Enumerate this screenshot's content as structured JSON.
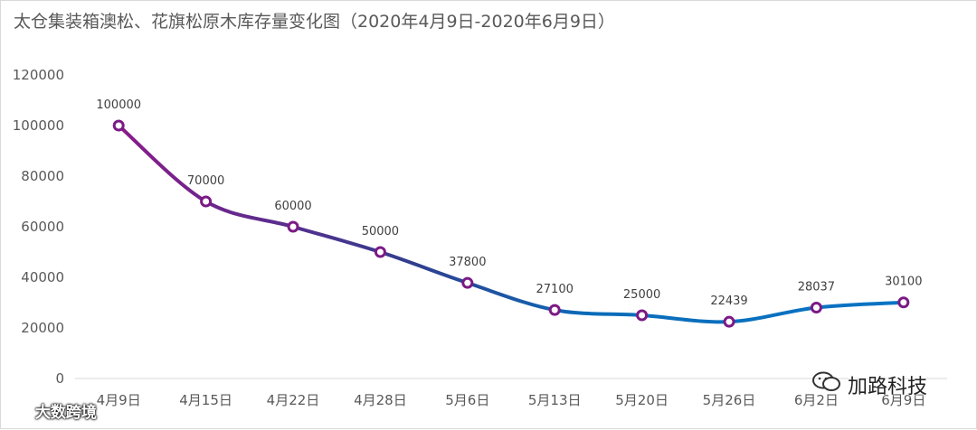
{
  "chart_data": {
    "type": "line",
    "title": "太仓集装箱澳松、花旗松原木库存量变化图（2020年4月9日-2020年6月9日）",
    "categories": [
      "4月9日",
      "4月15日",
      "4月22日",
      "4月28日",
      "5月6日",
      "5月13日",
      "5月20日",
      "5月26日",
      "6月2日",
      "6月9日"
    ],
    "series": [
      {
        "name": "库存量",
        "values": [
          100000,
          70000,
          60000,
          50000,
          37800,
          27100,
          25000,
          22439,
          28037,
          30100
        ]
      }
    ],
    "y_ticks": [
      0,
      20000,
      40000,
      60000,
      80000,
      100000,
      120000
    ],
    "ylim": [
      0,
      120000
    ],
    "xlabel": "",
    "ylabel": "",
    "grid": false,
    "line_gradient": [
      "#8b1a8b",
      "#2f3f8f",
      "#0a6cb9",
      "#0a74c4"
    ],
    "marker_color": "#7b1a86",
    "axis_color": "#d9d9d9"
  },
  "watermarks": {
    "left": "大数跨境",
    "right": "加路科技"
  }
}
